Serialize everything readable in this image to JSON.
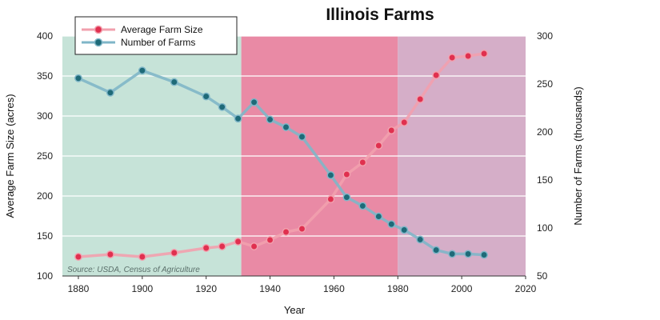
{
  "chart_data": {
    "type": "line",
    "title": "Illinois Farms",
    "xlabel": "Year",
    "ylabel_left": "Average Farm Size (acres)",
    "ylabel_right": "Number of Farms (thousands)",
    "source": "Source: USDA, Census of Agriculture",
    "xlim": [
      1875,
      2020
    ],
    "ylim_left": [
      100,
      400
    ],
    "ylim_right": [
      50,
      300
    ],
    "xticks": [
      1880,
      1900,
      1920,
      1940,
      1960,
      1980,
      2000,
      2020
    ],
    "yticks_left": [
      100,
      150,
      200,
      250,
      300,
      350,
      400
    ],
    "yticks_right": [
      50,
      100,
      150,
      200,
      250,
      300
    ],
    "grid": true,
    "legend_position": "top-left",
    "bands": [
      {
        "from": 1875,
        "to": 1931,
        "color": "#c6e3d8"
      },
      {
        "from": 1931,
        "to": 1980,
        "color": "#e98aa5"
      },
      {
        "from": 1980,
        "to": 2020,
        "color": "#d5aec8"
      }
    ],
    "series": [
      {
        "name": "Average Farm Size",
        "axis": "left",
        "line_color": "#f2a0ae",
        "marker_color": "#e0304f",
        "x": [
          1880,
          1890,
          1900,
          1910,
          1920,
          1925,
          1930,
          1935,
          1940,
          1945,
          1950,
          1959,
          1964,
          1969,
          1974,
          1978,
          1982,
          1987,
          1992,
          1997,
          2002,
          2007
        ],
        "y": [
          124,
          127,
          124,
          129,
          135,
          137,
          143,
          137,
          145,
          155,
          159,
          196,
          227,
          242,
          263,
          282,
          292,
          321,
          351,
          373,
          375,
          378
        ]
      },
      {
        "name": "Number of Farms",
        "axis": "right",
        "line_color": "#7fb6c8",
        "marker_color": "#1e6a78",
        "x": [
          1880,
          1890,
          1900,
          1910,
          1920,
          1925,
          1930,
          1935,
          1940,
          1945,
          1950,
          1959,
          1964,
          1969,
          1974,
          1978,
          1982,
          1987,
          1992,
          1997,
          2002,
          2007
        ],
        "y": [
          256,
          241,
          264,
          252,
          237,
          226,
          214,
          231,
          213,
          205,
          195,
          155,
          132,
          123,
          112,
          104,
          98,
          88,
          77,
          73,
          73,
          72
        ]
      }
    ]
  }
}
